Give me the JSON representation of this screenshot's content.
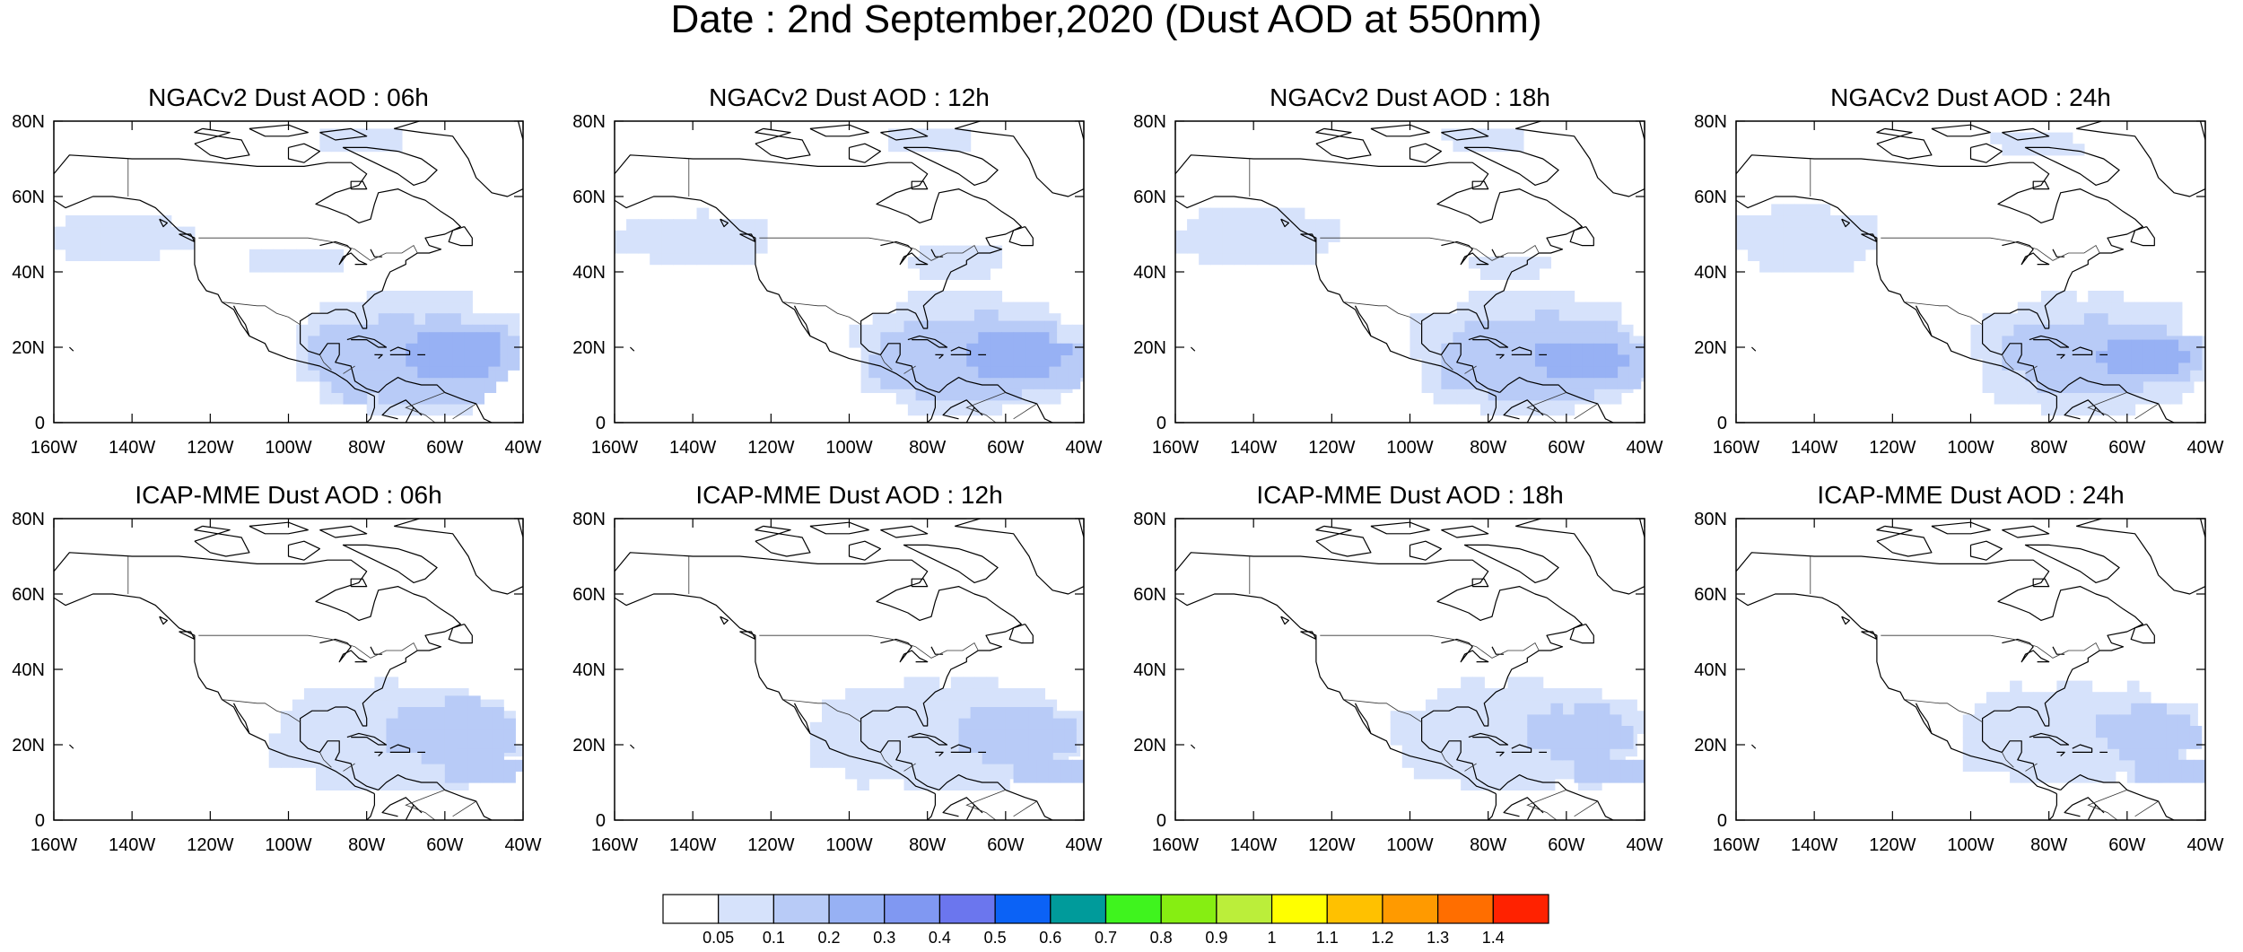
{
  "figure_title": "Date : 2nd September,2020 (Dust AOD at 550nm)",
  "colors": {
    "land_outline": "#000000",
    "ocean": "#ffffff"
  },
  "chart_data": [
    {
      "type": "heatmap",
      "title": "NGACv2 Dust AOD : 06h",
      "model": "NGACv2",
      "forecast_hour": "06h",
      "x_ticks": [
        "160W",
        "140W",
        "120W",
        "100W",
        "80W",
        "60W",
        "40W"
      ],
      "y_ticks": [
        "0",
        "20N",
        "40N",
        "60N",
        "80N"
      ],
      "xlim": [
        -160,
        -40
      ],
      "ylim": [
        0,
        80
      ],
      "plumes": [
        {
          "level": "0.05-0.1",
          "lon": [
            -160,
            -125
          ],
          "lat": [
            43,
            56
          ]
        },
        {
          "level": "0.05-0.1",
          "lon": [
            -95,
            -70
          ],
          "lat": [
            72,
            78
          ]
        },
        {
          "level": "0.05-0.1",
          "lon": [
            -110,
            -85
          ],
          "lat": [
            40,
            46
          ]
        },
        {
          "level": "0.05-0.1",
          "lon": [
            -98,
            -40
          ],
          "lat": [
            2,
            35
          ]
        },
        {
          "level": "0.1-0.2",
          "lon": [
            -95,
            -40
          ],
          "lat": [
            5,
            28
          ]
        },
        {
          "level": "0.2-0.3",
          "lon": [
            -70,
            -45
          ],
          "lat": [
            12,
            24
          ]
        }
      ]
    },
    {
      "type": "heatmap",
      "title": "NGACv2 Dust AOD : 12h",
      "model": "NGACv2",
      "forecast_hour": "12h",
      "x_ticks": [
        "160W",
        "140W",
        "120W",
        "100W",
        "80W",
        "60W",
        "40W"
      ],
      "y_ticks": [
        "0",
        "20N",
        "40N",
        "60N",
        "80N"
      ],
      "xlim": [
        -160,
        -40
      ],
      "ylim": [
        0,
        80
      ],
      "plumes": [
        {
          "level": "0.05-0.1",
          "lon": [
            -160,
            -120
          ],
          "lat": [
            42,
            55
          ]
        },
        {
          "level": "0.05-0.1",
          "lon": [
            -90,
            -70
          ],
          "lat": [
            72,
            78
          ]
        },
        {
          "level": "0.05-0.1",
          "lon": [
            -85,
            -60
          ],
          "lat": [
            38,
            48
          ]
        },
        {
          "level": "0.05-0.1",
          "lon": [
            -100,
            -40
          ],
          "lat": [
            2,
            35
          ]
        },
        {
          "level": "0.1-0.2",
          "lon": [
            -95,
            -40
          ],
          "lat": [
            6,
            28
          ]
        },
        {
          "level": "0.2-0.3",
          "lon": [
            -70,
            -45
          ],
          "lat": [
            12,
            24
          ]
        }
      ]
    },
    {
      "type": "heatmap",
      "title": "NGACv2 Dust AOD : 18h",
      "model": "NGACv2",
      "forecast_hour": "18h",
      "x_ticks": [
        "160W",
        "140W",
        "120W",
        "100W",
        "80W",
        "60W",
        "40W"
      ],
      "y_ticks": [
        "0",
        "20N",
        "40N",
        "60N",
        "80N"
      ],
      "xlim": [
        -160,
        -40
      ],
      "ylim": [
        0,
        80
      ],
      "plumes": [
        {
          "level": "0.05-0.1",
          "lon": [
            -160,
            -120
          ],
          "lat": [
            42,
            58
          ]
        },
        {
          "level": "0.05-0.1",
          "lon": [
            -92,
            -68
          ],
          "lat": [
            72,
            78
          ]
        },
        {
          "level": "0.05-0.1",
          "lon": [
            -85,
            -65
          ],
          "lat": [
            38,
            45
          ]
        },
        {
          "level": "0.05-0.1",
          "lon": [
            -100,
            -40
          ],
          "lat": [
            2,
            35
          ]
        },
        {
          "level": "0.1-0.2",
          "lon": [
            -95,
            -40
          ],
          "lat": [
            6,
            28
          ]
        },
        {
          "level": "0.2-0.3",
          "lon": [
            -68,
            -45
          ],
          "lat": [
            12,
            22
          ]
        }
      ]
    },
    {
      "type": "heatmap",
      "title": "NGACv2 Dust AOD : 24h",
      "model": "NGACv2",
      "forecast_hour": "24h",
      "x_ticks": [
        "160W",
        "140W",
        "120W",
        "100W",
        "80W",
        "60W",
        "40W"
      ],
      "y_ticks": [
        "0",
        "20N",
        "40N",
        "60N",
        "80N"
      ],
      "xlim": [
        -160,
        -40
      ],
      "ylim": [
        0,
        80
      ],
      "plumes": [
        {
          "level": "0.05-0.1",
          "lon": [
            -160,
            -125
          ],
          "lat": [
            40,
            58
          ]
        },
        {
          "level": "0.05-0.1",
          "lon": [
            -95,
            -70
          ],
          "lat": [
            71,
            77
          ]
        },
        {
          "level": "0.05-0.1",
          "lon": [
            -100,
            -40
          ],
          "lat": [
            2,
            34
          ]
        },
        {
          "level": "0.1-0.2",
          "lon": [
            -92,
            -42
          ],
          "lat": [
            8,
            27
          ]
        },
        {
          "level": "0.2-0.3",
          "lon": [
            -68,
            -45
          ],
          "lat": [
            13,
            22
          ]
        }
      ]
    },
    {
      "type": "heatmap",
      "title": "ICAP-MME Dust AOD : 06h",
      "model": "ICAP-MME",
      "forecast_hour": "06h",
      "x_ticks": [
        "160W",
        "140W",
        "120W",
        "100W",
        "80W",
        "60W",
        "40W"
      ],
      "y_ticks": [
        "0",
        "20N",
        "40N",
        "60N",
        "80N"
      ],
      "xlim": [
        -160,
        -40
      ],
      "ylim": [
        0,
        80
      ],
      "plumes": [
        {
          "level": "0.05-0.1",
          "lon": [
            -105,
            -40
          ],
          "lat": [
            8,
            36
          ]
        },
        {
          "level": "0.1-0.2",
          "lon": [
            -75,
            -42
          ],
          "lat": [
            15,
            32
          ]
        },
        {
          "level": "0.1-0.2",
          "lon": [
            -60,
            -40
          ],
          "lat": [
            10,
            18
          ]
        }
      ]
    },
    {
      "type": "heatmap",
      "title": "ICAP-MME Dust AOD : 12h",
      "model": "ICAP-MME",
      "forecast_hour": "12h",
      "x_ticks": [
        "160W",
        "140W",
        "120W",
        "100W",
        "80W",
        "60W",
        "40W"
      ],
      "y_ticks": [
        "0",
        "20N",
        "40N",
        "60N",
        "80N"
      ],
      "xlim": [
        -160,
        -40
      ],
      "ylim": [
        0,
        80
      ],
      "plumes": [
        {
          "level": "0.05-0.1",
          "lon": [
            -110,
            -40
          ],
          "lat": [
            8,
            37
          ]
        },
        {
          "level": "0.1-0.2",
          "lon": [
            -72,
            -42
          ],
          "lat": [
            15,
            30
          ]
        },
        {
          "level": "0.1-0.2",
          "lon": [
            -58,
            -40
          ],
          "lat": [
            10,
            17
          ]
        }
      ]
    },
    {
      "type": "heatmap",
      "title": "ICAP-MME Dust AOD : 18h",
      "model": "ICAP-MME",
      "forecast_hour": "18h",
      "x_ticks": [
        "160W",
        "140W",
        "120W",
        "100W",
        "80W",
        "60W",
        "40W"
      ],
      "y_ticks": [
        "0",
        "20N",
        "40N",
        "60N",
        "80N"
      ],
      "xlim": [
        -160,
        -40
      ],
      "ylim": [
        0,
        80
      ],
      "plumes": [
        {
          "level": "0.05-0.1",
          "lon": [
            -105,
            -40
          ],
          "lat": [
            8,
            37
          ]
        },
        {
          "level": "0.1-0.2",
          "lon": [
            -70,
            -42
          ],
          "lat": [
            16,
            30
          ]
        },
        {
          "level": "0.1-0.2",
          "lon": [
            -58,
            -40
          ],
          "lat": [
            10,
            17
          ]
        }
      ]
    },
    {
      "type": "heatmap",
      "title": "ICAP-MME Dust AOD : 24h",
      "model": "ICAP-MME",
      "forecast_hour": "24h",
      "x_ticks": [
        "160W",
        "140W",
        "120W",
        "100W",
        "80W",
        "60W",
        "40W"
      ],
      "y_ticks": [
        "0",
        "20N",
        "40N",
        "60N",
        "80N"
      ],
      "xlim": [
        -160,
        -40
      ],
      "ylim": [
        0,
        80
      ],
      "plumes": [
        {
          "level": "0.05-0.1",
          "lon": [
            -105,
            -40
          ],
          "lat": [
            10,
            36
          ]
        },
        {
          "level": "0.1-0.2",
          "lon": [
            -68,
            -42
          ],
          "lat": [
            16,
            30
          ]
        },
        {
          "level": "0.1-0.2",
          "lon": [
            -58,
            -40
          ],
          "lat": [
            10,
            17
          ]
        }
      ]
    }
  ],
  "colorbar": {
    "labels": [
      "0.05",
      "0.1",
      "0.2",
      "0.3",
      "0.4",
      "0.5",
      "0.6",
      "0.7",
      "0.8",
      "0.9",
      "1",
      "1.1",
      "1.2",
      "1.3",
      "1.4"
    ],
    "colors": [
      "#ffffff",
      "#d6e2fb",
      "#b8cbf7",
      "#97b1f4",
      "#8098f2",
      "#6b76ee",
      "#0b62f6",
      "#009b9b",
      "#3ff41e",
      "#86ee12",
      "#bbee3a",
      "#ffff00",
      "#ffc100",
      "#ff9a00",
      "#ff6e00",
      "#ff2200"
    ]
  }
}
